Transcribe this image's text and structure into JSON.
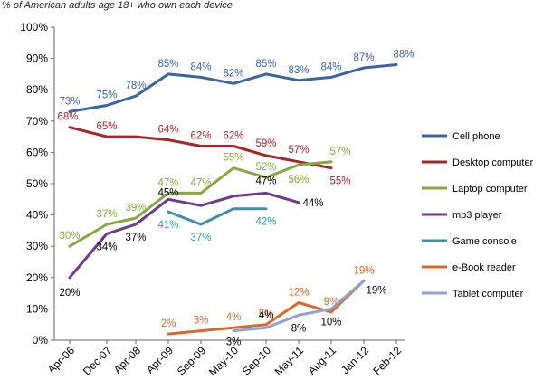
{
  "chart_data": {
    "type": "line",
    "title": "",
    "subtitle": "% of American adults age 18+ who own each device",
    "xlabel": "",
    "ylabel": "",
    "ylim": [
      0,
      100
    ],
    "yticks": [
      "0%",
      "10%",
      "20%",
      "30%",
      "40%",
      "50%",
      "60%",
      "70%",
      "80%",
      "90%",
      "100%"
    ],
    "categories": [
      "Apr-06",
      "Dec-07",
      "Apr-08",
      "Apr-09",
      "Sep-09",
      "May-10",
      "Sep-10",
      "May-11",
      "Aug-11",
      "Jan-12",
      "Feb-12"
    ],
    "grid": false,
    "legend_position": "right",
    "series": [
      {
        "name": "Cell phone",
        "color": "#3c64a3",
        "values": [
          73,
          75,
          78,
          85,
          84,
          82,
          85,
          83,
          84,
          87,
          88
        ],
        "labels": [
          "73%",
          "75%",
          "78%",
          "85%",
          "84%",
          "82%",
          "85%",
          "83%",
          "84%",
          "87%",
          "88%"
        ]
      },
      {
        "name": "Desktop computer",
        "color": "#a3272a",
        "values": [
          68,
          65,
          65,
          64,
          62,
          62,
          59,
          57,
          55,
          null,
          null
        ],
        "labels": [
          "68%",
          "65%",
          null,
          "64%",
          "62%",
          "62%",
          "59%",
          "57%",
          "55%",
          null,
          null
        ]
      },
      {
        "name": "Laptop computer",
        "color": "#88a743",
        "values": [
          30,
          37,
          39,
          47,
          47,
          55,
          52,
          56,
          57,
          null,
          null
        ],
        "labels": [
          "30%",
          "37%",
          "39%",
          "47%",
          "47%",
          "55%",
          "52%",
          "56%",
          "57%",
          null,
          null
        ]
      },
      {
        "name": "mp3 player",
        "color": "#6c3b8c",
        "values": [
          20,
          34,
          37,
          45,
          43,
          46,
          47,
          44,
          null,
          null,
          null
        ],
        "labels": [
          "20%",
          "34%",
          "37%",
          "45%",
          null,
          null,
          "47%",
          "44%",
          null,
          null,
          null
        ]
      },
      {
        "name": "Game console",
        "color": "#3a91a6",
        "values": [
          null,
          null,
          null,
          41,
          37,
          42,
          42,
          null,
          null,
          null,
          null
        ],
        "labels": [
          null,
          null,
          null,
          "41%",
          "37%",
          null,
          "42%",
          null,
          null,
          null,
          null
        ]
      },
      {
        "name": "e-Book reader",
        "color": "#d9692b",
        "values": [
          null,
          null,
          null,
          2,
          3,
          4,
          5,
          12,
          9,
          19,
          null
        ],
        "labels": [
          null,
          null,
          null,
          "2%",
          "3%",
          "4%",
          "5%",
          "12%",
          "9%",
          "19%",
          null
        ]
      },
      {
        "name": "Tablet computer",
        "color": "#8ea6cf",
        "values": [
          null,
          null,
          null,
          null,
          null,
          3,
          4,
          8,
          10,
          19,
          null
        ],
        "labels": [
          null,
          null,
          null,
          null,
          null,
          "3%",
          "4%",
          "8%",
          "10%",
          "19%",
          null
        ]
      }
    ]
  }
}
